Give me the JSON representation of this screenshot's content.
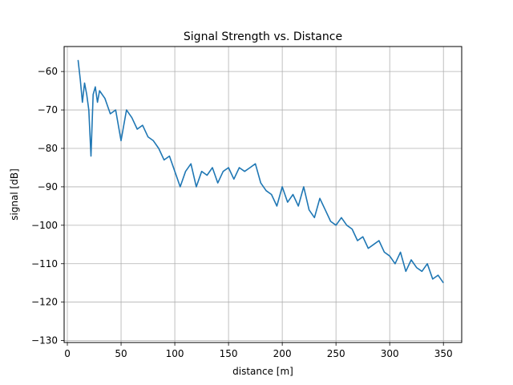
{
  "chart_data": {
    "type": "line",
    "title": "Signal Strength vs. Distance",
    "xlabel": "distance [m]",
    "ylabel": "signal [dB]",
    "xlim": [
      -3,
      367
    ],
    "ylim": [
      -130.5,
      -53.5
    ],
    "xticks": [
      0,
      50,
      100,
      150,
      200,
      250,
      300,
      350
    ],
    "yticks": [
      -130,
      -120,
      -110,
      -100,
      -90,
      -80,
      -70,
      -60
    ],
    "xtick_labels": [
      "0",
      "50",
      "100",
      "150",
      "200",
      "250",
      "300",
      "350"
    ],
    "ytick_labels": [
      "−130",
      "−120",
      "−110",
      "−100",
      "−90",
      "−80",
      "−70",
      "−60"
    ],
    "grid": true,
    "line_color": "#1f77b4",
    "series": [
      {
        "x": [
          10,
          12,
          14,
          16,
          18,
          20,
          22,
          24,
          26,
          28,
          30,
          35,
          40,
          45,
          50,
          55,
          60,
          65,
          70,
          75,
          80,
          85,
          90,
          95,
          100,
          105,
          110,
          115,
          120,
          125,
          130,
          135,
          140,
          145,
          150,
          155,
          160,
          165,
          170,
          175,
          180,
          185,
          190,
          195,
          200,
          205,
          210,
          215,
          220,
          225,
          230,
          235,
          240,
          245,
          250,
          255,
          260,
          265,
          270,
          275,
          280,
          285,
          290,
          295,
          300,
          305,
          310,
          315,
          320,
          325,
          330,
          335,
          340,
          345,
          350
        ],
        "y": [
          -57,
          -62,
          -68,
          -63,
          -66,
          -70,
          -82,
          -66,
          -64,
          -68,
          -65,
          -67,
          -71,
          -70,
          -78,
          -70,
          -72,
          -75,
          -74,
          -77,
          -78,
          -80,
          -83,
          -82,
          -86,
          -90,
          -86,
          -84,
          -90,
          -86,
          -87,
          -85,
          -89,
          -86,
          -85,
          -88,
          -85,
          -86,
          -85,
          -84,
          -89,
          -91,
          -92,
          -95,
          -90,
          -94,
          -92,
          -95,
          -90,
          -96,
          -98,
          -93,
          -96,
          -99,
          -100,
          -98,
          -100,
          -101,
          -104,
          -103,
          -106,
          -105,
          -104,
          -107,
          -108,
          -110,
          -107,
          -112,
          -109,
          -111,
          -112,
          -110,
          -114,
          -113,
          -115
        ]
      }
    ]
  }
}
